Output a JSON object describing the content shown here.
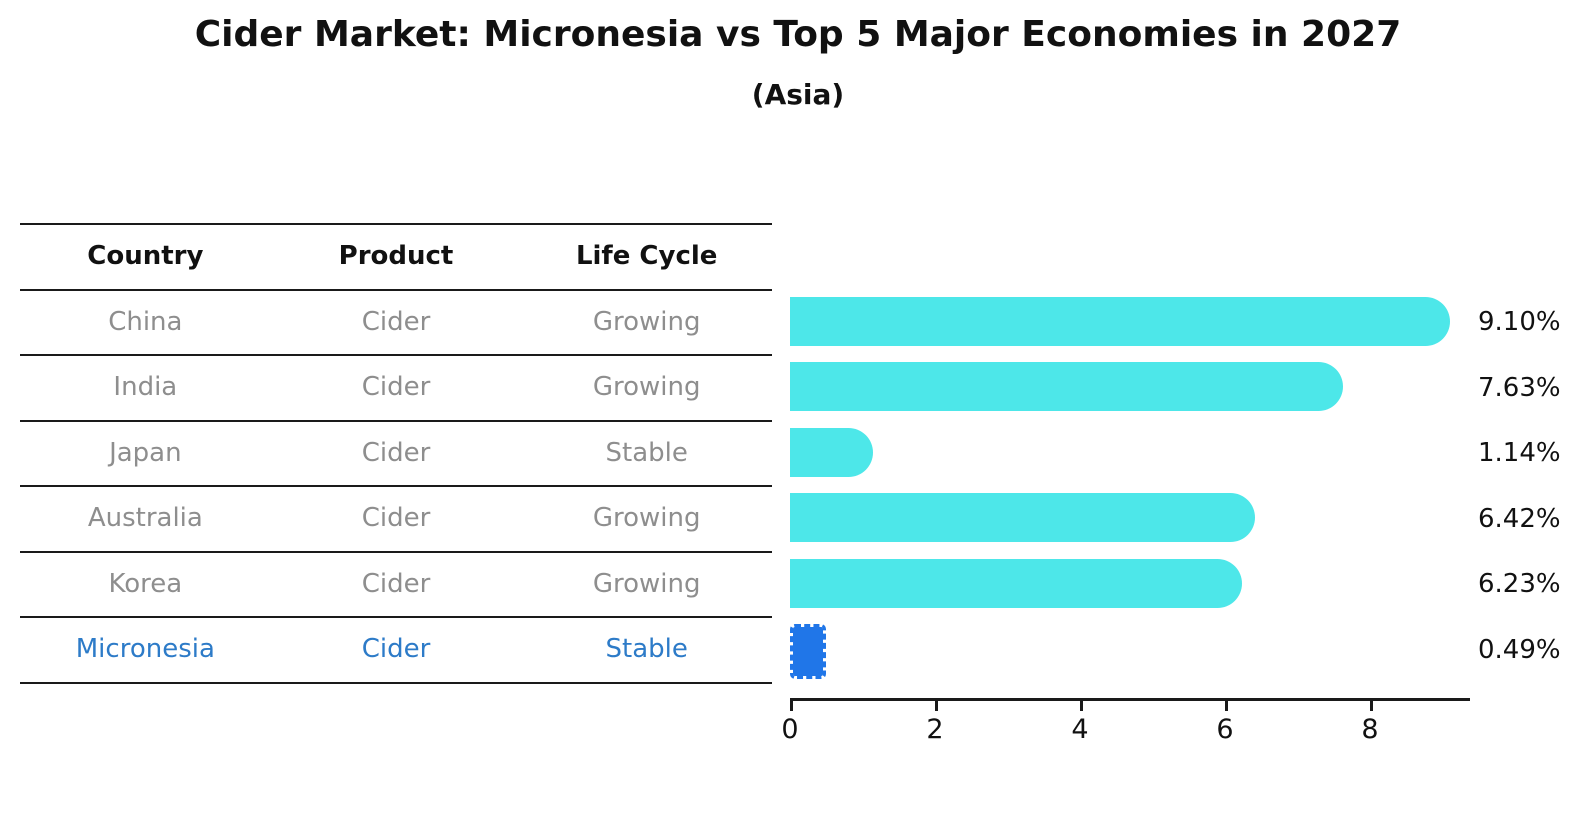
{
  "title": "Cider Market: Micronesia vs Top 5 Major Economies in 2027",
  "subtitle": "(Asia)",
  "table": {
    "headers": [
      "Country",
      "Product",
      "Life Cycle"
    ],
    "rows": [
      {
        "country": "China",
        "product": "Cider",
        "life_cycle": "Growing",
        "highlight": false
      },
      {
        "country": "India",
        "product": "Cider",
        "life_cycle": "Growing",
        "highlight": false
      },
      {
        "country": "Japan",
        "product": "Cider",
        "life_cycle": "Stable",
        "highlight": false
      },
      {
        "country": "Australia",
        "product": "Cider",
        "life_cycle": "Growing",
        "highlight": false
      },
      {
        "country": "Korea",
        "product": "Cider",
        "life_cycle": "Growing",
        "highlight": false
      },
      {
        "country": "Micronesia",
        "product": "Cider",
        "life_cycle": "Stable",
        "highlight": true
      }
    ]
  },
  "chart_data": {
    "type": "bar",
    "orientation": "horizontal",
    "title": "Cider Market: Micronesia vs Top 5 Major Economies in 2027",
    "subtitle": "(Asia)",
    "categories": [
      "China",
      "India",
      "Japan",
      "Australia",
      "Korea",
      "Micronesia"
    ],
    "values": [
      9.1,
      7.63,
      1.14,
      6.42,
      6.23,
      0.49
    ],
    "value_labels": [
      "9.10%",
      "7.63%",
      "1.14%",
      "6.42%",
      "6.23%",
      "0.49%"
    ],
    "xticks": [
      0,
      2,
      4,
      6,
      8
    ],
    "xlim": [
      0,
      9.6
    ],
    "xlabel": "",
    "ylabel": "",
    "grid": false,
    "legend": false,
    "highlight_category": "Micronesia",
    "colors": {
      "bar": "#4de7e9",
      "highlight_bar": "#2076e8",
      "highlight_text": "#2d7bc8",
      "row_text": "#8e8e8e",
      "header_text": "#111111",
      "axis": "#1a1a1a"
    }
  }
}
